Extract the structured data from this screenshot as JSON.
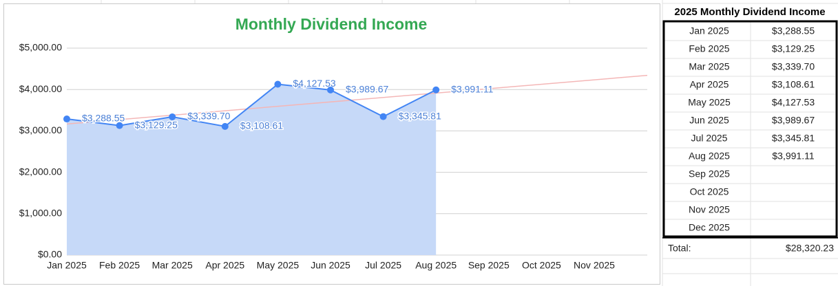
{
  "chart_data": {
    "type": "line",
    "title": "Monthly Dividend Income",
    "categories": [
      "Jan 2025",
      "Feb 2025",
      "Mar 2025",
      "Apr 2025",
      "May 2025",
      "Jun 2025",
      "Jul 2025",
      "Aug 2025",
      "Sep 2025",
      "Oct 2025",
      "Nov 2025"
    ],
    "series": [
      {
        "name": "Dividend Income",
        "color": "#4285f4",
        "area_color": "#c6d9f8",
        "values": [
          3288.55,
          3129.25,
          3339.7,
          3108.61,
          4127.53,
          3989.67,
          3345.81,
          3991.11,
          null,
          null,
          null
        ],
        "value_labels": [
          "$3,288.55",
          "$3,129.25",
          "$3,339.70",
          "$3,108.61",
          "$4,127.53",
          "$3,989.67",
          "$3,345.81",
          "$3,991.11",
          null,
          null,
          null
        ]
      }
    ],
    "ylim": [
      0,
      5000
    ],
    "yticks": [
      {
        "value": 0,
        "label": "$0.00"
      },
      {
        "value": 1000,
        "label": "$1,000.00"
      },
      {
        "value": 2000,
        "label": "$2,000.00"
      },
      {
        "value": 3000,
        "label": "$3,000.00"
      },
      {
        "value": 4000,
        "label": "$4,000.00"
      },
      {
        "value": 5000,
        "label": "$5,000.00"
      }
    ],
    "grid": true,
    "trendline": true,
    "trendline_color": "#f4b6b6"
  },
  "table": {
    "title": "2025 Monthly Dividend Income",
    "rows": [
      [
        "Jan 2025",
        "$3,288.55"
      ],
      [
        "Feb 2025",
        "$3,129.25"
      ],
      [
        "Mar 2025",
        "$3,339.70"
      ],
      [
        "Apr 2025",
        "$3,108.61"
      ],
      [
        "May 2025",
        "$4,127.53"
      ],
      [
        "Jun 2025",
        "$3,989.67"
      ],
      [
        "Jul 2025",
        "$3,345.81"
      ],
      [
        "Aug 2025",
        "$3,991.11"
      ],
      [
        "Sep 2025",
        ""
      ],
      [
        "Oct 2025",
        ""
      ],
      [
        "Nov 2025",
        ""
      ],
      [
        "Dec 2025",
        ""
      ]
    ],
    "total_label": "Total:",
    "total_value": "$28,320.23"
  }
}
